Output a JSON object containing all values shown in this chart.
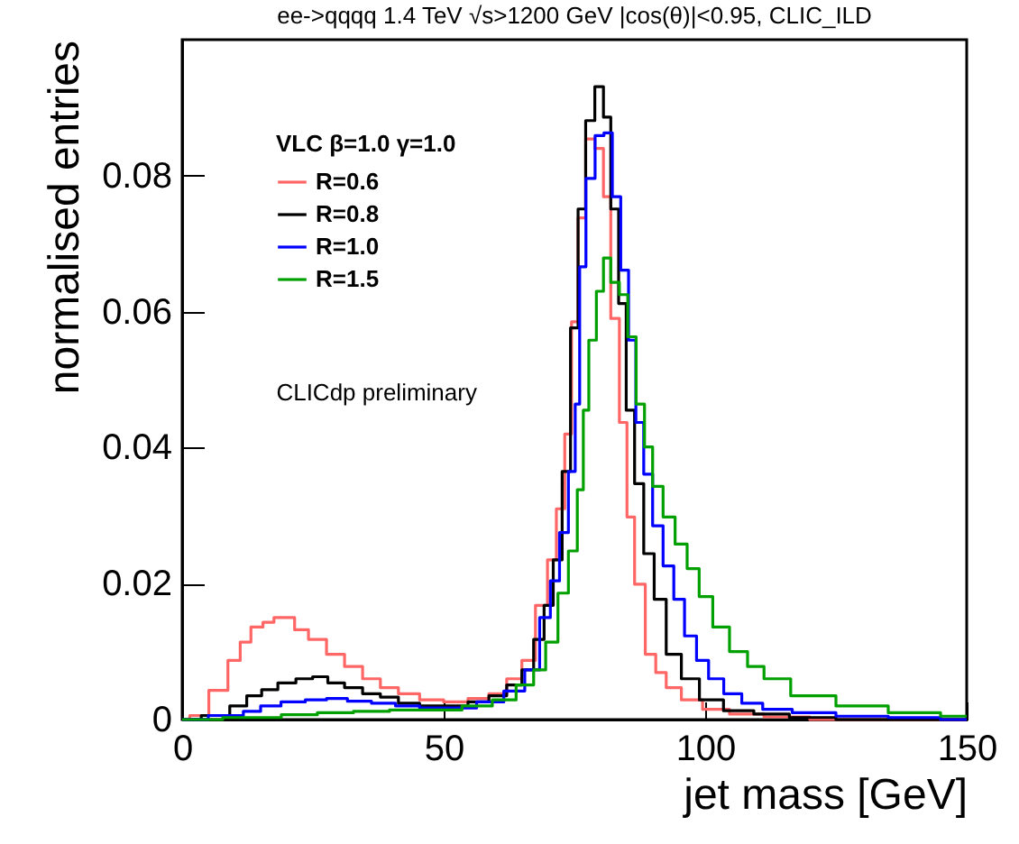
{
  "chart_data": {
    "type": "step",
    "title": "ee->qqqq 1.4 TeV  √s>1200 GeV |cos(θ)|<0.95, CLIC_ILD",
    "xlabel": "jet mass [GeV]",
    "ylabel": "normalised entries",
    "legend_title": "VLC  β=1.0  γ=1.0",
    "annotations": [
      "CLICdp preliminary"
    ],
    "xlim": [
      0,
      150
    ],
    "xticks": [
      0,
      50,
      100,
      150
    ],
    "ylim": [
      0,
      0.1
    ],
    "yticks": [
      {
        "value": 0,
        "label": "0"
      },
      0.02,
      0.04,
      0.06,
      0.08
    ],
    "grid": false,
    "legend": "top left",
    "series": [
      {
        "name": "R=0.6",
        "color": "#ff6666",
        "x": [
          0,
          2.9,
          7.3,
          10.2,
          12,
          14.3,
          16.6,
          18.5,
          20.6,
          22.4,
          25.9,
          29.3,
          32.8,
          36.2,
          39.6,
          43.1,
          47.7,
          52.3,
          57,
          60.3,
          63.8,
          66.1,
          69,
          70.7,
          72.4,
          73.9,
          75,
          76.4,
          77.9,
          79.9,
          81.2,
          82.7,
          84.5,
          85.6,
          87.4,
          89.7,
          91.4,
          93.7,
          97.2,
          101.8,
          107.5,
          115,
          125,
          150
        ],
        "values": [
          0,
          0.0006,
          0.0043,
          0.0087,
          0.0114,
          0.0136,
          0.0143,
          0.015,
          0.015,
          0.0132,
          0.0118,
          0.0096,
          0.0078,
          0.006,
          0.0047,
          0.0038,
          0.0029,
          0.0026,
          0.0031,
          0.0038,
          0.006,
          0.0087,
          0.0168,
          0.0235,
          0.031,
          0.042,
          0.0585,
          0.0738,
          0.0854,
          0.084,
          0.0769,
          0.059,
          0.0437,
          0.0298,
          0.0199,
          0.0096,
          0.0069,
          0.0047,
          0.0029,
          0.0015,
          0.0008,
          0.0004,
          0,
          0
        ]
      },
      {
        "name": "R=0.8",
        "color": "#000000",
        "x": [
          0,
          7.3,
          10.9,
          13.8,
          16.6,
          20,
          23.5,
          26.4,
          29.3,
          32.8,
          36.2,
          39.6,
          43.1,
          47.7,
          52.3,
          57,
          60.3,
          63.8,
          66.1,
          68.3,
          70.1,
          71.8,
          73.5,
          75,
          76.4,
          77.9,
          79.9,
          81.2,
          82.7,
          84.2,
          85.6,
          87.4,
          89.1,
          91.4,
          93.7,
          97.2,
          100.6,
          106.4,
          112.2,
          120,
          130,
          150
        ],
        "values": [
          0,
          0.0006,
          0.002,
          0.0035,
          0.0044,
          0.0054,
          0.006,
          0.0063,
          0.0054,
          0.0047,
          0.0038,
          0.0033,
          0.0024,
          0.002,
          0.002,
          0.0026,
          0.0035,
          0.0051,
          0.0073,
          0.0118,
          0.0168,
          0.0235,
          0.0365,
          0.0576,
          0.0751,
          0.0881,
          0.0931,
          0.0886,
          0.0751,
          0.0612,
          0.0455,
          0.0347,
          0.0244,
          0.0177,
          0.0096,
          0.006,
          0.0029,
          0.0013,
          0.0008,
          0.0003,
          0,
          0
        ]
      },
      {
        "name": "R=1.0",
        "color": "#0000ff",
        "x": [
          0,
          10,
          13.4,
          16.6,
          21.2,
          25.9,
          29.3,
          33.9,
          38.5,
          43.1,
          47.7,
          53.4,
          59.2,
          63.8,
          67.2,
          69.5,
          71.3,
          73,
          74.7,
          75.6,
          76.4,
          78,
          79.9,
          81.4,
          83.1,
          84.6,
          86.1,
          87.4,
          89.1,
          90.8,
          93.1,
          94.9,
          97.2,
          99.5,
          101.8,
          105.3,
          108.7,
          113.3,
          120,
          130,
          140,
          150
        ],
        "values": [
          0,
          0.0006,
          0.0012,
          0.002,
          0.0026,
          0.0029,
          0.0031,
          0.0027,
          0.0024,
          0.002,
          0.0017,
          0.0017,
          0.0026,
          0.0042,
          0.0073,
          0.015,
          0.0204,
          0.0275,
          0.0365,
          0.0464,
          0.0666,
          0.0796,
          0.0859,
          0.0863,
          0.0769,
          0.0661,
          0.0558,
          0.0437,
          0.0361,
          0.0285,
          0.0226,
          0.0177,
          0.0123,
          0.0087,
          0.006,
          0.0038,
          0.0024,
          0.0015,
          0.001,
          0.0005,
          0.0003,
          0
        ]
      },
      {
        "name": "R=1.5",
        "color": "#00a000",
        "x": [
          0,
          15.5,
          22.4,
          29.3,
          36.2,
          43.1,
          50,
          57,
          61.6,
          66.1,
          68.3,
          70.7,
          73,
          74.7,
          76.4,
          77,
          78.5,
          79.9,
          81.2,
          82.7,
          84.5,
          85.9,
          87.7,
          89.1,
          90.8,
          93.1,
          95.4,
          97.7,
          100,
          102.9,
          106.4,
          109.8,
          112.7,
          120,
          130,
          140,
          150
        ],
        "values": [
          0,
          0.0003,
          0.0007,
          0.001,
          0.0012,
          0.0014,
          0.0014,
          0.002,
          0.0029,
          0.0051,
          0.0073,
          0.0114,
          0.0186,
          0.0248,
          0.0338,
          0.0455,
          0.0558,
          0.063,
          0.0679,
          0.0643,
          0.0625,
          0.0563,
          0.0464,
          0.0401,
          0.0343,
          0.0298,
          0.0258,
          0.0222,
          0.0181,
          0.0136,
          0.01,
          0.0078,
          0.006,
          0.0035,
          0.002,
          0.001,
          0.0005
        ]
      }
    ]
  }
}
